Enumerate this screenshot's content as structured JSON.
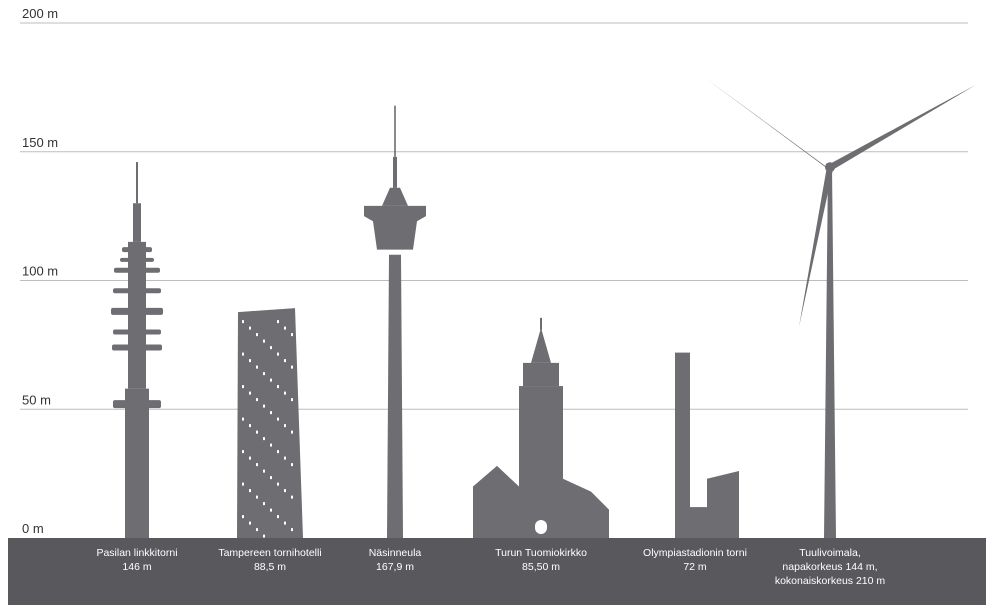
{
  "colors": {
    "silhouette": "#6d6d72",
    "ground": "#59595d",
    "grid": "#bdbdbd",
    "caption": "#ffffff",
    "tick": "#333333"
  },
  "chart_data": {
    "type": "bar",
    "title": "",
    "xlabel": "",
    "ylabel": "",
    "ylim": [
      0,
      200
    ],
    "y_ticks": [
      {
        "value": 0,
        "label": "0 m"
      },
      {
        "value": 50,
        "label": "50 m"
      },
      {
        "value": 100,
        "label": "100 m"
      },
      {
        "value": 150,
        "label": "150 m"
      },
      {
        "value": 200,
        "label": "200 m"
      }
    ],
    "grid": true,
    "values": [
      146,
      88.5,
      167.9,
      85.5,
      72,
      210
    ],
    "structures": [
      {
        "shape": "mast",
        "height": 146,
        "label_lines": [
          "Pasilan linkkitorni",
          "146 m"
        ]
      },
      {
        "shape": "hotel",
        "height": 88.5,
        "label_lines": [
          "Tampereen tornihotelli",
          "88,5 m"
        ]
      },
      {
        "shape": "needle",
        "height": 167.9,
        "label_lines": [
          "Näsinneula",
          "167,9 m"
        ]
      },
      {
        "shape": "cathedral",
        "height": 85.5,
        "label_lines": [
          "Turun Tuomiokirkko",
          "85,50 m"
        ]
      },
      {
        "shape": "stadium",
        "height": 72,
        "label_lines": [
          "Olympiastadionin torni",
          "72 m"
        ]
      },
      {
        "shape": "turbine",
        "height": 210,
        "hub_height": 144,
        "label_lines": [
          "Tuulivoimala,",
          "napakorkeus 144 m,",
          "kokonaiskorkeus 210 m"
        ]
      }
    ]
  }
}
